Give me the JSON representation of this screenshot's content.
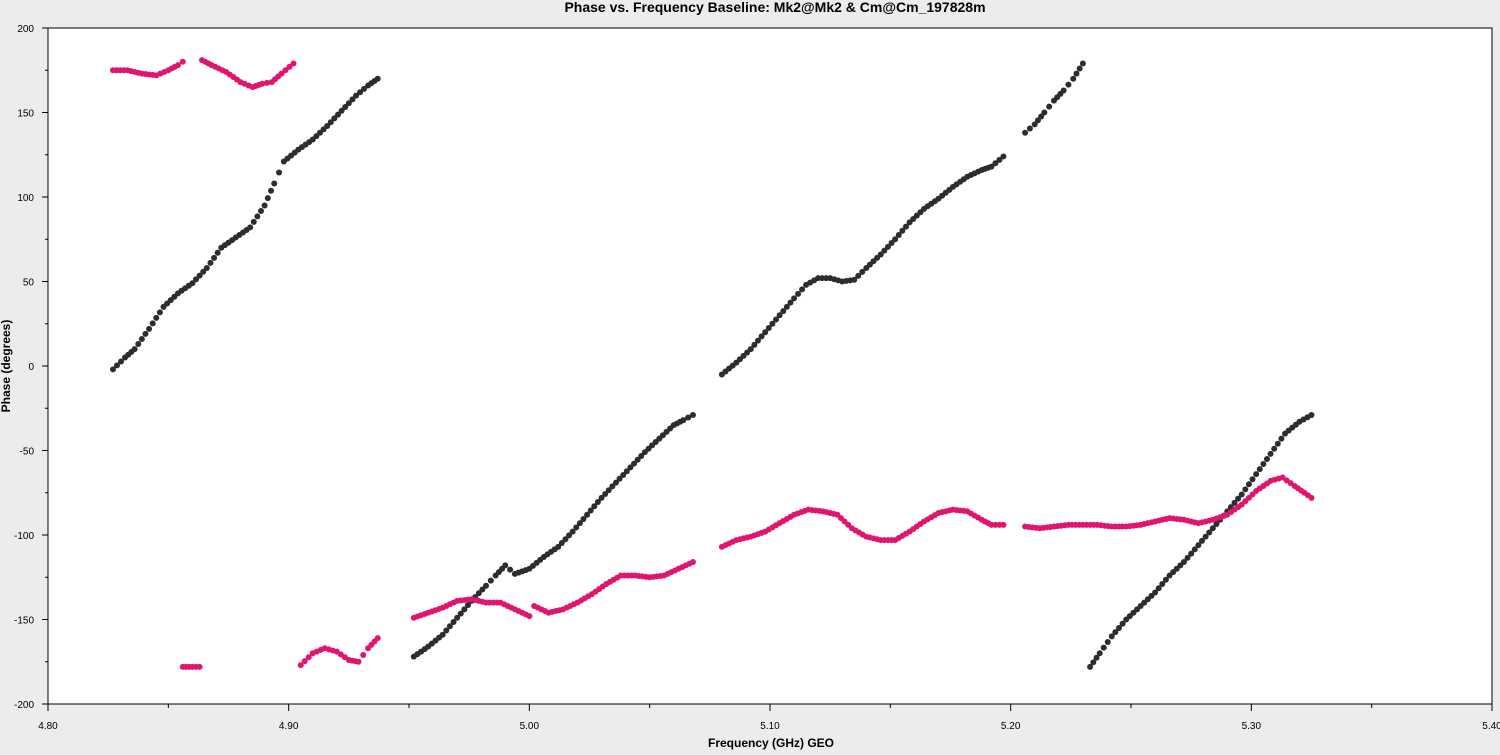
{
  "chart_data": {
    "type": "scatter",
    "title": "Phase vs. Frequency Baseline: Mk2@Mk2 & Cm@Cm_197828m",
    "xlabel": "Frequency (GHz) GEO",
    "ylabel": "Phase (degrees)",
    "xlim": [
      4.8,
      5.4
    ],
    "ylim": [
      -200,
      200
    ],
    "x_ticks": [
      4.8,
      4.9,
      5.0,
      5.1,
      5.2,
      5.3,
      5.4
    ],
    "x_tick_labels": [
      "4.80",
      "4.90",
      "5.00",
      "5.10",
      "5.20",
      "5.30",
      "5.40"
    ],
    "y_ticks": [
      -200,
      -150,
      -100,
      -50,
      0,
      50,
      100,
      150,
      200
    ],
    "y_tick_labels": [
      "-200",
      "-150",
      "-100",
      "-50",
      "0",
      "50",
      "100",
      "150",
      "200"
    ],
    "grid": false,
    "background": "#ffffff",
    "series": [
      {
        "color": "#2d2d2d",
        "segments": [
          [
            [
              4.827,
              -2
            ],
            [
              4.832,
              5
            ],
            [
              4.836,
              10
            ],
            [
              4.842,
              22
            ],
            [
              4.848,
              35
            ],
            [
              4.854,
              43
            ],
            [
              4.86,
              49
            ],
            [
              4.866,
              58
            ],
            [
              4.872,
              70
            ],
            [
              4.878,
              76
            ],
            [
              4.884,
              82
            ],
            [
              4.89,
              95
            ],
            [
              4.894,
              108
            ],
            [
              4.898,
              121
            ],
            [
              4.904,
              128
            ],
            [
              4.91,
              134
            ],
            [
              4.916,
              142
            ],
            [
              4.922,
              151
            ],
            [
              4.928,
              160
            ],
            [
              4.933,
              166
            ],
            [
              4.937,
              170
            ]
          ],
          [
            [
              4.952,
              -172
            ],
            [
              4.958,
              -166
            ],
            [
              4.964,
              -159
            ],
            [
              4.97,
              -149
            ],
            [
              4.976,
              -139
            ],
            [
              4.982,
              -130
            ],
            [
              4.986,
              -124
            ],
            [
              4.99,
              -118
            ],
            [
              4.994,
              -123
            ],
            [
              5.0,
              -120
            ],
            [
              5.006,
              -113
            ],
            [
              5.012,
              -107
            ],
            [
              5.018,
              -98
            ],
            [
              5.024,
              -88
            ],
            [
              5.03,
              -78
            ],
            [
              5.036,
              -69
            ],
            [
              5.042,
              -60
            ],
            [
              5.048,
              -51
            ],
            [
              5.054,
              -43
            ],
            [
              5.06,
              -35
            ],
            [
              5.064,
              -32
            ],
            [
              5.068,
              -29
            ]
          ],
          [
            [
              5.08,
              -5
            ],
            [
              5.086,
              2
            ],
            [
              5.092,
              10
            ],
            [
              5.098,
              20
            ],
            [
              5.104,
              30
            ],
            [
              5.11,
              40
            ],
            [
              5.115,
              48
            ],
            [
              5.12,
              52
            ],
            [
              5.125,
              52
            ],
            [
              5.13,
              50
            ],
            [
              5.135,
              51
            ],
            [
              5.14,
              58
            ],
            [
              5.146,
              66
            ],
            [
              5.152,
              75
            ],
            [
              5.158,
              85
            ],
            [
              5.164,
              93
            ],
            [
              5.17,
              99
            ],
            [
              5.176,
              106
            ],
            [
              5.182,
              112
            ],
            [
              5.188,
              116
            ],
            [
              5.192,
              118
            ],
            [
              5.197,
              124
            ]
          ],
          [
            [
              5.206,
              138
            ],
            [
              5.21,
              143
            ],
            [
              5.214,
              150
            ],
            [
              5.218,
              157
            ],
            [
              5.222,
              163
            ],
            [
              5.226,
              170
            ],
            [
              5.23,
              179
            ]
          ],
          [
            [
              5.233,
              -178
            ],
            [
              5.237,
              -170
            ],
            [
              5.242,
              -160
            ],
            [
              5.248,
              -150
            ],
            [
              5.254,
              -142
            ],
            [
              5.26,
              -134
            ],
            [
              5.266,
              -124
            ],
            [
              5.272,
              -116
            ],
            [
              5.278,
              -106
            ],
            [
              5.284,
              -96
            ],
            [
              5.29,
              -86
            ],
            [
              5.296,
              -76
            ],
            [
              5.302,
              -64
            ],
            [
              5.308,
              -52
            ],
            [
              5.314,
              -40
            ],
            [
              5.32,
              -33
            ],
            [
              5.325,
              -29
            ]
          ]
        ]
      },
      {
        "color": "#e0156e",
        "segments": [
          [
            [
              4.827,
              175
            ],
            [
              4.833,
              175
            ],
            [
              4.839,
              173
            ],
            [
              4.845,
              172
            ],
            [
              4.85,
              175
            ],
            [
              4.854,
              178
            ],
            [
              4.856,
              180
            ]
          ],
          [
            [
              4.856,
              -178
            ],
            [
              4.86,
              -178
            ],
            [
              4.863,
              -178
            ]
          ],
          [
            [
              4.864,
              181
            ],
            [
              4.868,
              178
            ],
            [
              4.874,
              174
            ],
            [
              4.88,
              168
            ],
            [
              4.885,
              165
            ],
            [
              4.889,
              167
            ],
            [
              4.893,
              168
            ],
            [
              4.897,
              173
            ],
            [
              4.902,
              179
            ]
          ],
          [
            [
              4.905,
              -177
            ],
            [
              4.91,
              -170
            ],
            [
              4.915,
              -167
            ],
            [
              4.92,
              -169
            ],
            [
              4.925,
              -174
            ],
            [
              4.929,
              -175
            ],
            [
              4.933,
              -167
            ],
            [
              4.937,
              -161
            ]
          ],
          [
            [
              4.952,
              -149
            ],
            [
              4.958,
              -146
            ],
            [
              4.964,
              -143
            ],
            [
              4.97,
              -139
            ],
            [
              4.976,
              -138
            ],
            [
              4.982,
              -140
            ],
            [
              4.988,
              -140
            ],
            [
              4.994,
              -144
            ],
            [
              5.0,
              -148
            ]
          ],
          [
            [
              5.002,
              -142
            ],
            [
              5.008,
              -146
            ],
            [
              5.014,
              -144
            ],
            [
              5.02,
              -140
            ],
            [
              5.026,
              -135
            ],
            [
              5.032,
              -129
            ],
            [
              5.038,
              -124
            ],
            [
              5.044,
              -124
            ],
            [
              5.05,
              -125
            ],
            [
              5.056,
              -124
            ],
            [
              5.062,
              -120
            ],
            [
              5.068,
              -116
            ]
          ],
          [
            [
              5.08,
              -107
            ],
            [
              5.086,
              -103
            ],
            [
              5.092,
              -101
            ],
            [
              5.098,
              -98
            ],
            [
              5.104,
              -93
            ],
            [
              5.11,
              -88
            ],
            [
              5.116,
              -85
            ],
            [
              5.122,
              -86
            ],
            [
              5.128,
              -88
            ],
            [
              5.134,
              -96
            ],
            [
              5.14,
              -101
            ],
            [
              5.146,
              -103
            ],
            [
              5.152,
              -103
            ],
            [
              5.158,
              -98
            ],
            [
              5.164,
              -92
            ],
            [
              5.17,
              -87
            ],
            [
              5.176,
              -85
            ],
            [
              5.182,
              -86
            ],
            [
              5.188,
              -91
            ],
            [
              5.192,
              -94
            ],
            [
              5.197,
              -94
            ]
          ],
          [
            [
              5.206,
              -95
            ],
            [
              5.212,
              -96
            ],
            [
              5.218,
              -95
            ],
            [
              5.224,
              -94
            ],
            [
              5.23,
              -94
            ],
            [
              5.236,
              -94
            ],
            [
              5.242,
              -95
            ],
            [
              5.248,
              -95
            ],
            [
              5.254,
              -94
            ],
            [
              5.26,
              -92
            ],
            [
              5.266,
              -90
            ],
            [
              5.272,
              -91
            ],
            [
              5.278,
              -93
            ],
            [
              5.284,
              -91
            ],
            [
              5.29,
              -88
            ],
            [
              5.296,
              -82
            ],
            [
              5.302,
              -74
            ],
            [
              5.308,
              -68
            ],
            [
              5.313,
              -66
            ],
            [
              5.318,
              -71
            ],
            [
              5.322,
              -75
            ],
            [
              5.325,
              -78
            ]
          ]
        ]
      }
    ]
  }
}
